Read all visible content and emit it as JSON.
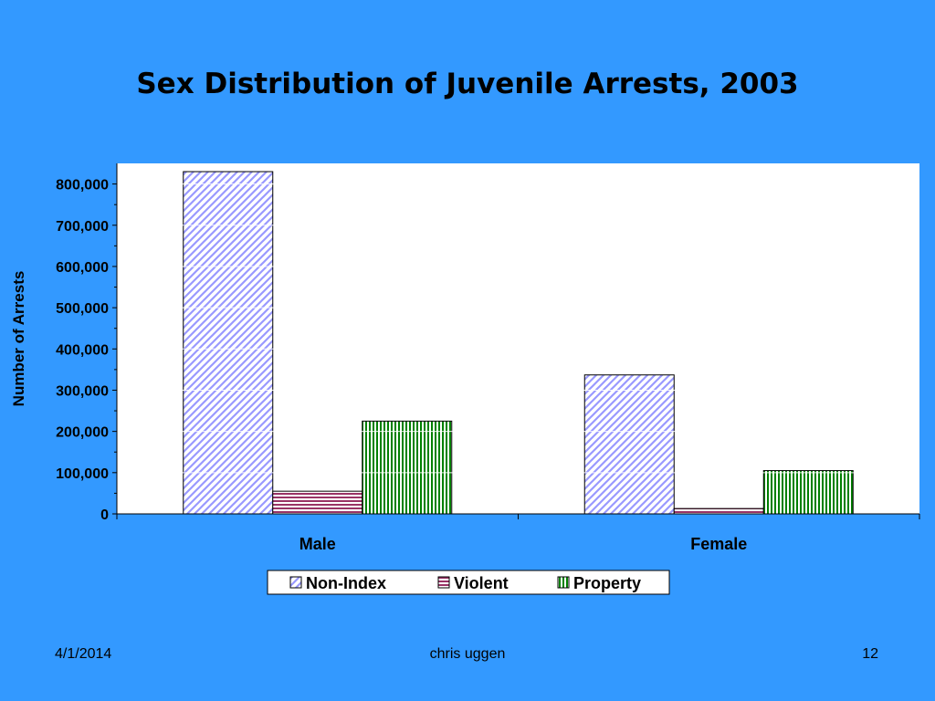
{
  "slide": {
    "title": "Sex Distribution of Juvenile Arrests, 2003",
    "footer_date": "4/1/2014",
    "footer_author": "chris uggen",
    "footer_page": "12"
  },
  "colors": {
    "background": "#3399FF",
    "plot_area": "#FFFFFF",
    "non_index": "#9999FF",
    "violent": "#993366",
    "property": "#008000"
  },
  "chart_data": {
    "type": "bar",
    "categories": [
      "Male",
      "Female"
    ],
    "series": [
      {
        "name": "Non-Index",
        "values": [
          830000,
          337000
        ]
      },
      {
        "name": "Violent",
        "values": [
          55000,
          13000
        ]
      },
      {
        "name": "Property",
        "values": [
          225000,
          105000
        ]
      }
    ],
    "title": "Sex Distribution of Juvenile Arrests, 2003",
    "xlabel": "",
    "ylabel": "Number of Arrests",
    "ylim": [
      0,
      850000
    ],
    "yticks": [
      0,
      100000,
      200000,
      300000,
      400000,
      500000,
      600000,
      700000,
      800000
    ],
    "ytick_labels": [
      "0",
      "100,000",
      "200,000",
      "300,000",
      "400,000",
      "500,000",
      "600,000",
      "700,000",
      "800,000"
    ],
    "grid": true,
    "legend": "bottom"
  }
}
